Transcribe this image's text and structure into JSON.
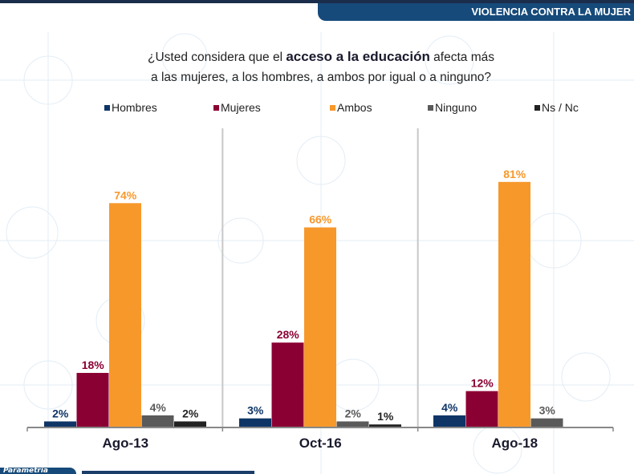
{
  "header": {
    "section_title": "VIOLENCIA CONTRA LA MUJER"
  },
  "question": {
    "part1": "¿Usted considera que el ",
    "bold": "acceso a la educación",
    "part2": " afecta más",
    "line2": "a las mujeres, a los hombres, a ambos por igual o a ninguno?"
  },
  "footer": {
    "brand": "Parametría"
  },
  "colors": {
    "Hombres": "#0e3566",
    "Mujeres": "#8b0033",
    "Ambos": "#f7982b",
    "Ninguno": "#5a5a5a",
    "Ns / Nc": "#222222",
    "banner": "#164a7a"
  },
  "chart_data": {
    "type": "bar",
    "title": "¿Usted considera que el acceso a la educación afecta más a las mujeres, a los hombres, a ambos por igual o a ninguno?",
    "categories": [
      "Ago-13",
      "Oct-16",
      "Ago-18"
    ],
    "legend_position": "top",
    "ylim": [
      0,
      100
    ],
    "grid": false,
    "series": [
      {
        "name": "Hombres",
        "values": [
          2,
          3,
          4
        ],
        "labels": [
          "2%",
          "3%",
          "4%"
        ]
      },
      {
        "name": "Mujeres",
        "values": [
          18,
          28,
          12
        ],
        "labels": [
          "18%",
          "28%",
          "12%"
        ]
      },
      {
        "name": "Ambos",
        "values": [
          74,
          66,
          81
        ],
        "labels": [
          "74%",
          "66%",
          "81%"
        ]
      },
      {
        "name": "Ninguno",
        "values": [
          4,
          2,
          3
        ],
        "labels": [
          "4%",
          "2%",
          "3%"
        ]
      },
      {
        "name": "Ns / Nc",
        "values": [
          2,
          1,
          null
        ],
        "labels": [
          "2%",
          "1%",
          null
        ]
      }
    ]
  }
}
